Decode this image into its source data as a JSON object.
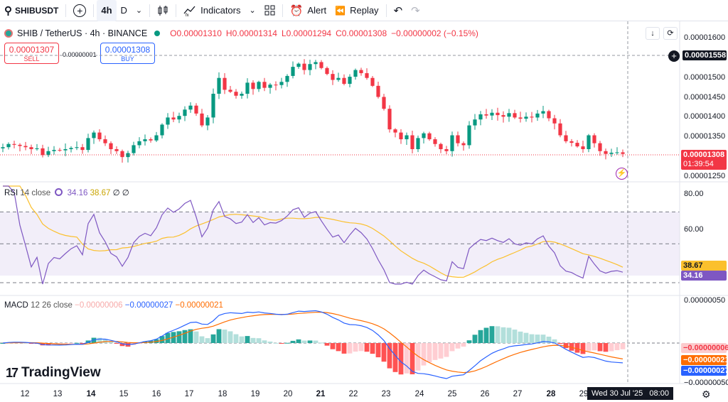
{
  "toolbar": {
    "symbol": "SHIBUSDT",
    "timeframe_active": "4h",
    "timeframe_other": "D",
    "indicators_label": "Indicators",
    "alert_label": "Alert",
    "replay_label": "Replay"
  },
  "legend": {
    "title": "SHIB / TetherUS · 4h · BINANCE",
    "open": "O0.00001310",
    "high": "H0.00001314",
    "low": "L0.00001294",
    "close": "C0.00001308",
    "change": "−0.00000002 (−0.15%)"
  },
  "trade": {
    "sell_price": "0.00001307",
    "sell_label": "SELL",
    "spread": "0.00000001",
    "buy_price": "0.00001308",
    "buy_label": "BUY"
  },
  "price_axis": {
    "ticks": [
      "0.00001600",
      "0.00001500",
      "0.00001450",
      "0.00001400",
      "0.00001350",
      "0.00001250"
    ],
    "crosshair_value": "0.00001558",
    "last_price": "0.00001308",
    "countdown": "01:39:54"
  },
  "rsi": {
    "label": "RSI",
    "params": "14 close",
    "value": "34.16",
    "ma_value": "38.67",
    "extra": "∅ ∅",
    "ticks": [
      "80.00",
      "60.00"
    ]
  },
  "macd": {
    "label": "MACD",
    "params": "12 26 close",
    "hist_value": "−0.00000006",
    "macd_value": "−0.00000027",
    "signal_value": "−0.00000021",
    "ticks": [
      "0.00000050",
      "0.00000000",
      "−0.00000050"
    ]
  },
  "x_axis": {
    "labels": [
      "12",
      "13",
      "14",
      "15",
      "16",
      "17",
      "18",
      "19",
      "20",
      "21",
      "22",
      "23",
      "24",
      "25",
      "26",
      "27",
      "28",
      "29"
    ],
    "crosshair_date": "Wed 30 Jul '25",
    "crosshair_time": "08:00"
  },
  "branding": {
    "logo_text": "TradingView"
  },
  "colors": {
    "up": "#089981",
    "down": "#f23645",
    "rsi": "#7e57c2",
    "rsi_ma": "#fbc02d",
    "macd": "#2962ff",
    "signal": "#ff6d00"
  },
  "chart_data": {
    "type": "candlestick",
    "timeframe": "4h",
    "closes": [
      1325,
      1333,
      1331,
      1328,
      1325,
      1320,
      1322,
      1305,
      1315,
      1318,
      1317,
      1320,
      1323,
      1325,
      1318,
      1348,
      1362,
      1345,
      1335,
      1320,
      1315,
      1300,
      1310,
      1330,
      1340,
      1345,
      1342,
      1355,
      1382,
      1400,
      1395,
      1404,
      1420,
      1430,
      1410,
      1380,
      1400,
      1460,
      1500,
      1470,
      1465,
      1455,
      1460,
      1488,
      1472,
      1490,
      1475,
      1483,
      1482,
      1490,
      1505,
      1528,
      1536,
      1520,
      1535,
      1540,
      1525,
      1510,
      1495,
      1500,
      1485,
      1503,
      1520,
      1512,
      1500,
      1480,
      1452,
      1422,
      1370,
      1362,
      1345,
      1355,
      1320,
      1348,
      1360,
      1345,
      1333,
      1320,
      1315,
      1355,
      1335,
      1330,
      1380,
      1395,
      1408,
      1405,
      1412,
      1406,
      1402,
      1411,
      1400,
      1397,
      1402,
      1400,
      1410,
      1416,
      1398,
      1385,
      1355,
      1340,
      1336,
      1327,
      1320,
      1355,
      1335,
      1315,
      1308,
      1311,
      1312,
      1308
    ],
    "rsi_ylim": [
      40,
      80
    ],
    "rsi_bands": [
      70,
      50,
      30
    ],
    "macd_ylim": [
      -5e-07,
      5e-07
    ]
  }
}
